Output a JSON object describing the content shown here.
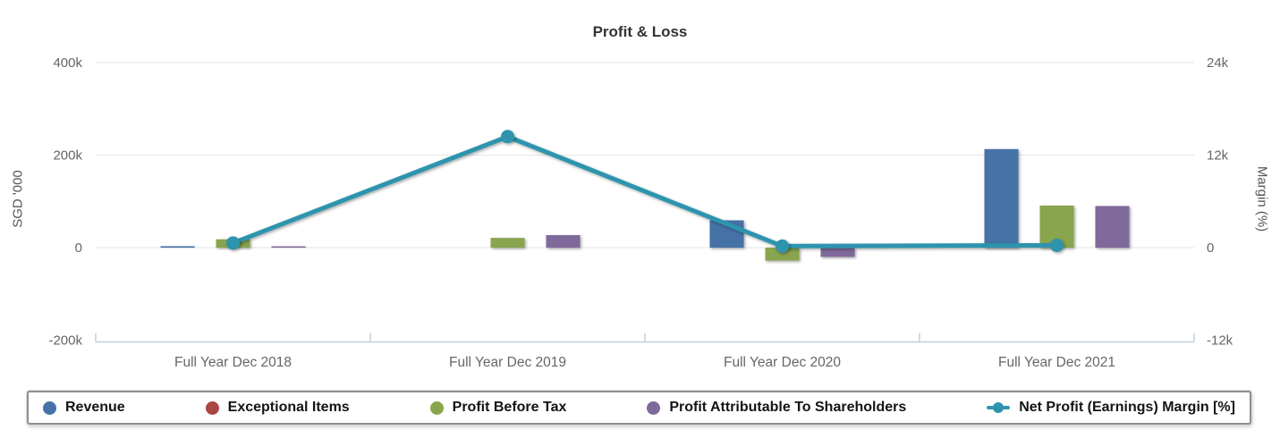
{
  "chart_data": {
    "type": "bar",
    "title": "Profit & Loss",
    "categories": [
      "Full Year Dec 2018",
      "Full Year Dec 2019",
      "Full Year Dec 2020",
      "Full Year Dec 2021"
    ],
    "series": [
      {
        "name": "Revenue",
        "kind": "column",
        "axis": "left",
        "color": "#4572A7",
        "values": [
          3,
          0,
          59,
          213
        ]
      },
      {
        "name": "Exceptional Items",
        "kind": "column",
        "axis": "left",
        "color": "#AA4643",
        "values": [
          0,
          0,
          0,
          0
        ]
      },
      {
        "name": "Profit Before Tax",
        "kind": "column",
        "axis": "left",
        "color": "#89A54E",
        "values": [
          18,
          21,
          -28,
          91
        ]
      },
      {
        "name": "Profit Attributable To Shareholders",
        "kind": "column",
        "axis": "left",
        "color": "#80699B",
        "values": [
          2,
          27,
          -20,
          90
        ]
      },
      {
        "name": "Net Profit (Earnings) Margin [%]",
        "kind": "line",
        "axis": "right",
        "color": "#2E94AE",
        "values": [
          0.6,
          14.4,
          0.2,
          0.3
        ]
      }
    ],
    "left_axis": {
      "title": "SGD '000",
      "tick_labels": [
        "400k",
        "200k",
        "0",
        "-200k"
      ],
      "tick_values": [
        400,
        200,
        0,
        -200
      ],
      "range": [
        -200,
        400
      ]
    },
    "right_axis": {
      "title": "Margin (%)",
      "tick_labels": [
        "24k",
        "12k",
        "0",
        "-12k"
      ],
      "tick_values": [
        24,
        12,
        0,
        -12
      ],
      "range": [
        -12,
        24
      ]
    },
    "grid": true,
    "legend_position": "bottom"
  },
  "colors": {
    "grid": "#e6e6e6",
    "axis_line": "#c0d0e0",
    "tick_label": "#666666",
    "category_label": "#666666",
    "title": "#333333",
    "axis_title": "#555555",
    "legend_text": "#141414",
    "legend_border": "#8f8f8f",
    "background": "#ffffff"
  }
}
